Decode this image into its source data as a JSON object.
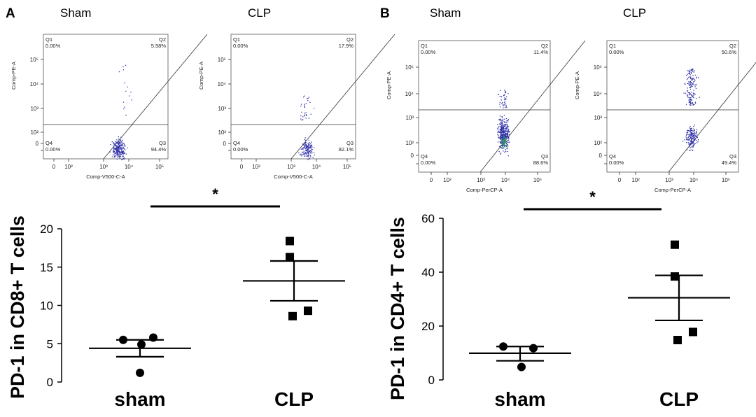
{
  "panels": [
    {
      "letter": "A",
      "groups": [
        "Sham",
        "CLP"
      ]
    },
    {
      "letter": "B",
      "groups": [
        "Sham",
        "CLP"
      ]
    }
  ],
  "chart_data": [
    {
      "type": "scatter",
      "id": "flow-A-sham",
      "xlabel": "Comp-V500-C-A",
      "ylabel": "Comp-PE-A",
      "x_ticks": [
        "0",
        "10²",
        "10³",
        "10⁴",
        "10⁵"
      ],
      "y_ticks": [
        "0",
        "10²",
        "10³",
        "10⁴",
        "10⁵"
      ],
      "quadrants": [
        {
          "name": "Q1",
          "value": "0.00%"
        },
        {
          "name": "Q2",
          "value": "5.58%"
        },
        {
          "name": "Q3",
          "value": "94.4%"
        },
        {
          "name": "Q4",
          "value": "0.00%"
        }
      ],
      "point_color": "#3333aa"
    },
    {
      "type": "scatter",
      "id": "flow-A-clp",
      "xlabel": "Comp-V500-C-A",
      "ylabel": "Comp-PE-A",
      "x_ticks": [
        "0",
        "10²",
        "10³",
        "10⁴",
        "10⁵"
      ],
      "y_ticks": [
        "0",
        "10²",
        "10³",
        "10⁴",
        "10⁵"
      ],
      "quadrants": [
        {
          "name": "Q1",
          "value": "0.00%"
        },
        {
          "name": "Q2",
          "value": "17.9%"
        },
        {
          "name": "Q3",
          "value": "82.1%"
        },
        {
          "name": "Q4",
          "value": "0.00%"
        }
      ],
      "point_color": "#3333aa"
    },
    {
      "type": "scatter",
      "id": "flow-B-sham",
      "xlabel": "Comp-PerCP-A",
      "ylabel": "Comp-PE-A",
      "x_ticks": [
        "0",
        "10²",
        "10³",
        "10⁴",
        "10⁵"
      ],
      "y_ticks": [
        "0",
        "10²",
        "10³",
        "10⁴",
        "10⁵"
      ],
      "quadrants": [
        {
          "name": "Q1",
          "value": "0.00%"
        },
        {
          "name": "Q2",
          "value": "11.4%"
        },
        {
          "name": "Q3",
          "value": "88.6%"
        },
        {
          "name": "Q4",
          "value": "0.00%"
        }
      ],
      "point_color": "#3333aa"
    },
    {
      "type": "scatter",
      "id": "flow-B-clp",
      "xlabel": "Comp-PerCP-A",
      "ylabel": "Comp-PE-A",
      "x_ticks": [
        "0",
        "10²",
        "10³",
        "10⁴",
        "10⁵"
      ],
      "y_ticks": [
        "0",
        "10²",
        "10³",
        "10⁴",
        "10⁵"
      ],
      "quadrants": [
        {
          "name": "Q1",
          "value": "0.00%"
        },
        {
          "name": "Q2",
          "value": "50.6%"
        },
        {
          "name": "Q3",
          "value": "49.4%"
        },
        {
          "name": "Q4",
          "value": "0.00%"
        }
      ],
      "point_color": "#3333aa"
    },
    {
      "type": "scatter",
      "id": "dot-A",
      "ylabel": "PD-1 in CD8+ T cells",
      "categories": [
        "sham",
        "CLP"
      ],
      "ylim": [
        0,
        20
      ],
      "yticks": [
        0,
        5,
        10,
        15,
        20
      ],
      "groups": [
        {
          "category": "sham",
          "marker": "circle",
          "points": [
            5.5,
            5.8,
            4.9,
            1.2
          ],
          "mean": 4.4,
          "sem_low": 3.3,
          "sem_high": 5.5
        },
        {
          "category": "CLP",
          "marker": "square",
          "points": [
            18.4,
            16.3,
            9.3,
            8.6
          ],
          "mean": 13.2,
          "sem_low": 10.6,
          "sem_high": 15.8
        }
      ],
      "significance": "*"
    },
    {
      "type": "scatter",
      "id": "dot-B",
      "ylabel": "PD-1 in CD4+ T cells",
      "categories": [
        "sham",
        "CLP"
      ],
      "ylim": [
        0,
        60
      ],
      "yticks": [
        0,
        20,
        40,
        60
      ],
      "groups": [
        {
          "category": "sham",
          "marker": "circle",
          "points": [
            12.4,
            11.8,
            4.8
          ],
          "mean": 9.9,
          "sem_low": 7.1,
          "sem_high": 12.4
        },
        {
          "category": "CLP",
          "marker": "square",
          "points": [
            50.2,
            38.4,
            17.8,
            14.8
          ],
          "mean": 30.5,
          "sem_low": 22.1,
          "sem_high": 38.8
        }
      ],
      "significance": "*"
    }
  ]
}
